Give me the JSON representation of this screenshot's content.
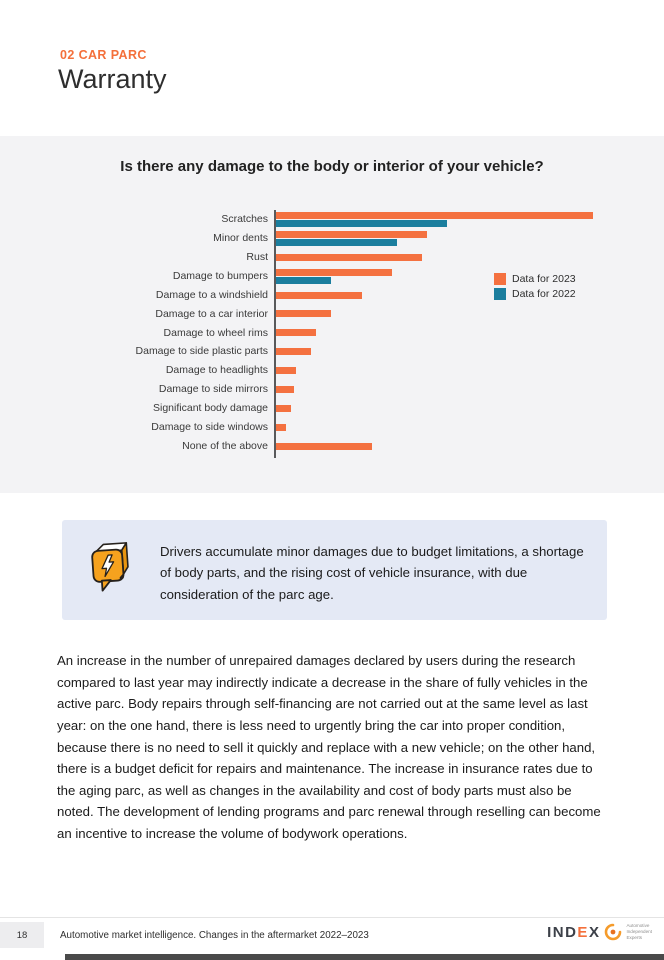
{
  "page": {
    "eyebrow": "02 CAR PARC",
    "title": "Warranty"
  },
  "chart_data": {
    "type": "bar",
    "orientation": "horizontal",
    "title": "Is there any damage to the body or interior of your vehicle?",
    "categories": [
      "Scratches",
      "Minor dents",
      "Rust",
      "Damage to bumpers",
      "Damage to a windshield",
      "Damage to a car interior",
      "Damage to wheel rims",
      "Damage to side plastic parts",
      "Damage to headlights",
      "Damage to side mirrors",
      "Significant body damage",
      "Damage to side windows",
      "None of the above"
    ],
    "series": [
      {
        "name": "Data for 2023",
        "color": "#F47140",
        "values": [
          63,
          30,
          29,
          23,
          17,
          11,
          8,
          7,
          4,
          3.5,
          3,
          2,
          19
        ]
      },
      {
        "name": "Data for 2022",
        "color": "#1B7E9E",
        "values": [
          34,
          24,
          null,
          11,
          null,
          null,
          null,
          null,
          null,
          null,
          null,
          null,
          null
        ]
      }
    ],
    "value_labels_shown": false,
    "axis_tick_labels_shown": false,
    "grid": false,
    "legend_position": "right",
    "note": "values estimated from bar lengths; axis unlabeled"
  },
  "callout": {
    "icon": "speech-bubble-lightning-icon",
    "text": "Drivers accumulate minor damages due to budget limitations, a shortage of body parts, and the rising cost of vehicle insurance, with due consideration of the parc age."
  },
  "body_text": "An increase in the number of unrepaired damages declared by users during the research compared to last year may indirectly indicate a decrease in the share of fully vehicles in the active parc. Body repairs through self-financing are not carried out at the same level as last year: on the one hand, there is less need to urgently bring the car into proper condition, because there is no need to sell it quickly and replace with a new vehicle; on the other hand, there is a budget deficit for repairs and maintenance. The increase in insurance rates due to the aging parc, as well as changes in the availability and cost of body parts must also be noted. The development of lending programs and parc renewal through reselling can become an incentive to increase the volume of bodywork operations.",
  "footer": {
    "page_number": "18",
    "caption": "Automotive market intelligence. Changes in the aftermarket 2022–2023",
    "logo_part1": "IND",
    "logo_accent": "E",
    "logo_part2": "X",
    "logo_tagline_lines": [
      "Automotive",
      "Independent",
      "Experts"
    ]
  },
  "colors": {
    "accent_orange": "#F4703B",
    "bar_2023": "#F47140",
    "bar_2022": "#1B7E9E",
    "panel_bg": "#F3F3F5",
    "callout_bg": "#E4E9F5",
    "icon_amber": "#F6A21E"
  }
}
